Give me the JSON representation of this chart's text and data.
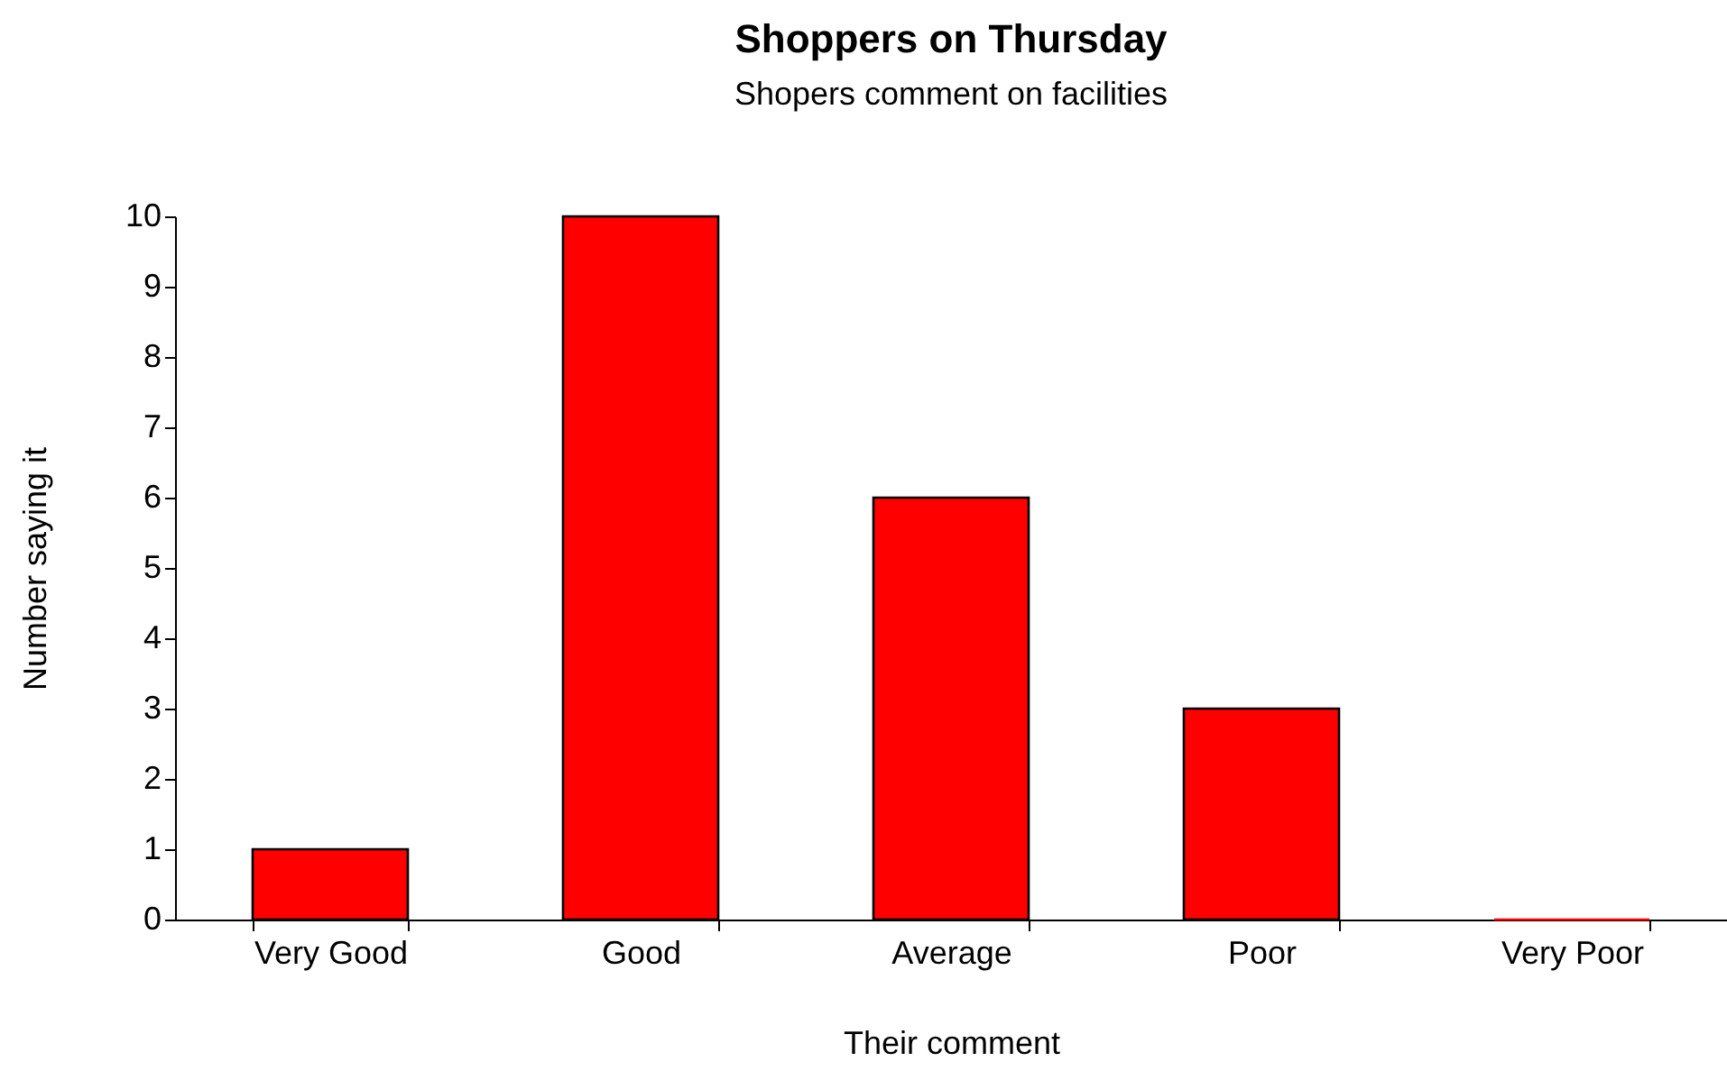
{
  "chart_data": {
    "type": "bar",
    "title": "Shoppers on Thursday",
    "subtitle": "Shopers comment on facilities",
    "xlabel": "Their comment",
    "ylabel": "Number saying it",
    "categories": [
      "Very Good",
      "Good",
      "Average",
      "Poor",
      "Very Poor"
    ],
    "values": [
      1,
      10,
      6,
      3,
      0
    ],
    "color": "#ff0000",
    "ylim": [
      0,
      10
    ],
    "yticks": [
      0,
      1,
      2,
      3,
      4,
      5,
      6,
      7,
      8,
      9,
      10
    ],
    "grid": false
  }
}
